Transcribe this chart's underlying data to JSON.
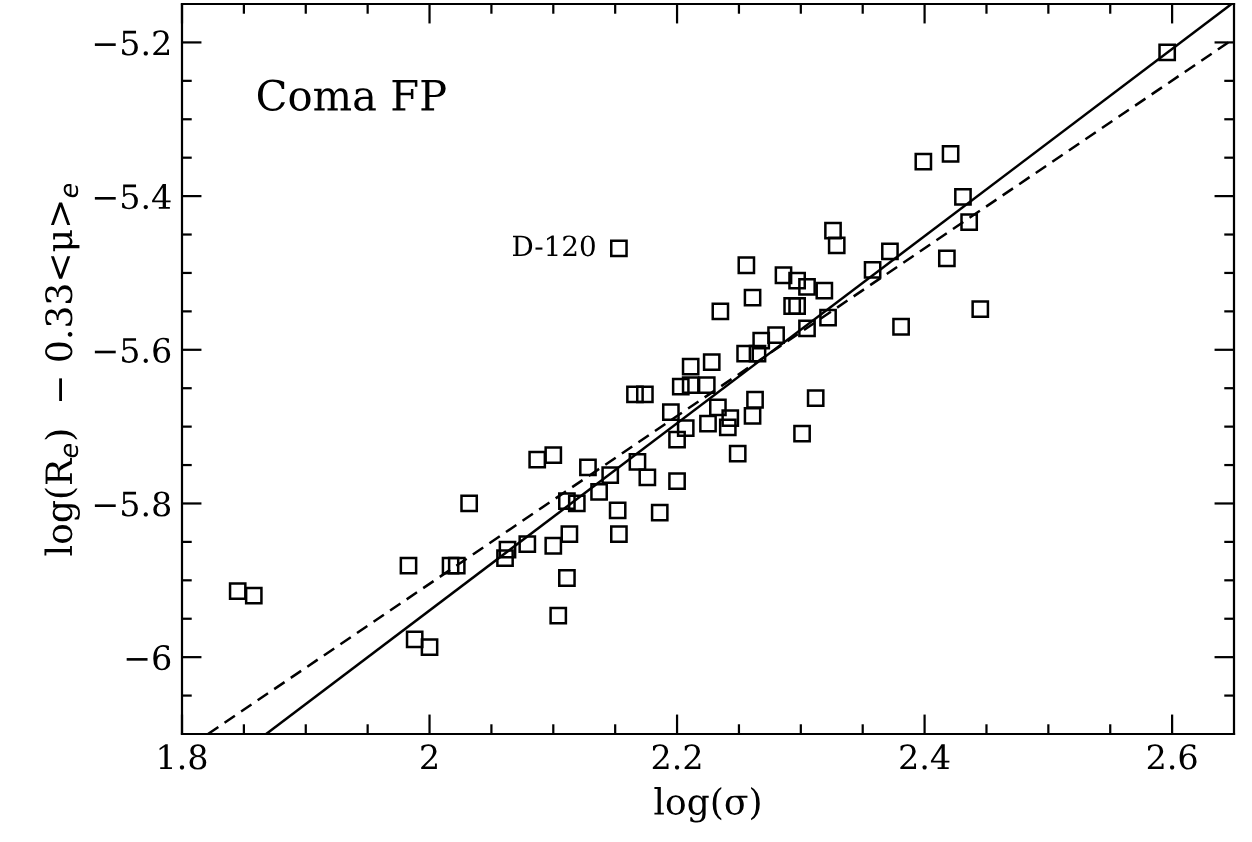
{
  "chart_data": {
    "type": "scatter",
    "xlabel": "log(σ)",
    "ylabel": "log(R$_{e}$)  − 0.33<μ>$_{e}$",
    "annotations": [
      "Coma FP",
      {
        "text": "D-120",
        "x": 2.153,
        "y": -5.468
      }
    ],
    "xlim": [
      1.8,
      2.65
    ],
    "ylim": [
      -6.1,
      -5.15
    ],
    "xticks": [
      {
        "value": 1.8,
        "label": "1.8"
      },
      {
        "value": 1.85,
        "label": null
      },
      {
        "value": 1.9,
        "label": null
      },
      {
        "value": 1.95,
        "label": null
      },
      {
        "value": 2.0,
        "label": "2"
      },
      {
        "value": 2.05,
        "label": null
      },
      {
        "value": 2.1,
        "label": null
      },
      {
        "value": 2.15,
        "label": null
      },
      {
        "value": 2.2,
        "label": "2.2"
      },
      {
        "value": 2.25,
        "label": null
      },
      {
        "value": 2.3,
        "label": null
      },
      {
        "value": 2.35,
        "label": null
      },
      {
        "value": 2.4,
        "label": "2.4"
      },
      {
        "value": 2.45,
        "label": null
      },
      {
        "value": 2.5,
        "label": null
      },
      {
        "value": 2.55,
        "label": null
      },
      {
        "value": 2.6,
        "label": "2.6"
      }
    ],
    "yticks": [
      {
        "value": -6.05,
        "label": null
      },
      {
        "value": -6.0,
        "label": "−6"
      },
      {
        "value": -5.95,
        "label": null
      },
      {
        "value": -5.9,
        "label": null
      },
      {
        "value": -5.85,
        "label": null
      },
      {
        "value": -5.8,
        "label": "−5.8"
      },
      {
        "value": -5.75,
        "label": null
      },
      {
        "value": -5.7,
        "label": null
      },
      {
        "value": -5.65,
        "label": null
      },
      {
        "value": -5.6,
        "label": "−5.6"
      },
      {
        "value": -5.55,
        "label": null
      },
      {
        "value": -5.5,
        "label": null
      },
      {
        "value": -5.45,
        "label": null
      },
      {
        "value": -5.4,
        "label": "−5.4"
      },
      {
        "value": -5.35,
        "label": null
      },
      {
        "value": -5.3,
        "label": null
      },
      {
        "value": -5.25,
        "label": null
      },
      {
        "value": -5.2,
        "label": "−5.2"
      }
    ],
    "grid": false,
    "legend": false,
    "marker": "square",
    "series": [
      {
        "color": "#000000",
        "x": [
          1.845,
          1.858,
          1.983,
          1.988,
          2.0,
          2.017,
          2.022,
          2.032,
          2.061,
          2.063,
          2.079,
          2.087,
          2.1,
          2.1,
          2.104,
          2.111,
          2.111,
          2.119,
          2.113,
          2.128,
          2.137,
          2.146,
          2.152,
          2.153,
          2.166,
          2.174,
          2.168,
          2.176,
          2.186,
          2.195,
          2.2,
          2.2,
          2.203,
          2.207,
          2.211,
          2.211,
          2.224,
          2.225,
          2.228,
          2.233,
          2.241,
          2.243,
          2.261,
          2.263,
          2.249,
          2.301,
          2.312,
          2.596,
          2.399,
          2.421,
          2.431,
          2.436,
          2.418,
          2.445,
          2.372,
          2.358,
          2.326,
          2.329,
          2.381,
          2.322,
          2.305,
          2.319,
          2.305,
          2.297,
          2.286,
          2.293,
          2.297,
          2.256,
          2.261,
          2.235,
          2.28,
          2.268,
          2.255,
          2.265,
          2.153
        ],
        "values": [
          -5.914,
          -5.92,
          -5.881,
          -5.977,
          -5.987,
          -5.881,
          -5.881,
          -5.8,
          -5.871,
          -5.86,
          -5.853,
          -5.743,
          -5.737,
          -5.855,
          -5.946,
          -5.897,
          -5.797,
          -5.8,
          -5.84,
          -5.753,
          -5.785,
          -5.763,
          -5.809,
          -5.84,
          -5.658,
          -5.658,
          -5.746,
          -5.766,
          -5.812,
          -5.681,
          -5.717,
          -5.771,
          -5.648,
          -5.702,
          -5.622,
          -5.646,
          -5.646,
          -5.696,
          -5.616,
          -5.675,
          -5.701,
          -5.689,
          -5.686,
          -5.665,
          -5.735,
          -5.709,
          -5.663,
          -5.213,
          -5.355,
          -5.345,
          -5.401,
          -5.434,
          -5.481,
          -5.547,
          -5.472,
          -5.496,
          -5.445,
          -5.464,
          -5.57,
          -5.558,
          -5.572,
          -5.523,
          -5.518,
          -5.51,
          -5.503,
          -5.543,
          -5.543,
          -5.49,
          -5.532,
          -5.55,
          -5.581,
          -5.588,
          -5.605,
          -5.605,
          -5.468
        ]
      },
      {
        "type": "line",
        "color": "#000000",
        "line_style": "solid",
        "marker": "none",
        "x": [
          1.868,
          2.648
        ],
        "values": [
          -6.1,
          -5.15
        ]
      },
      {
        "type": "line",
        "color": "#000000",
        "line_style": "dashed",
        "marker": "none",
        "x": [
          1.821,
          2.65
        ],
        "values": [
          -6.1,
          -5.195
        ]
      }
    ]
  }
}
